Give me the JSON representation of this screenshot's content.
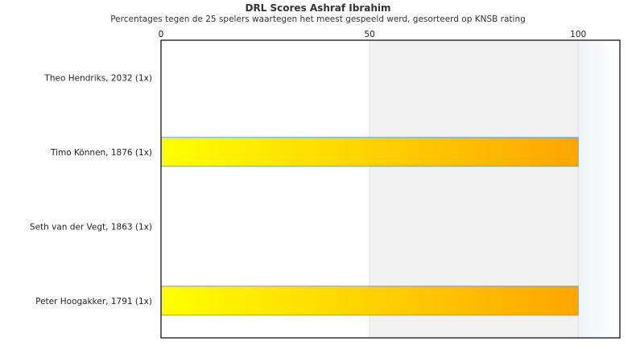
{
  "chart_data": {
    "type": "bar",
    "orientation": "horizontal",
    "title": "DRL Scores Ashraf Ibrahim",
    "subtitle": "Percentages tegen de 25 spelers waartegen het meest gespeeld werd, gesorteerd op KNSB rating",
    "categories": [
      "Theo Hendriks, 2032 (1x)",
      "Timo Können, 1876 (1x)",
      "Seth van der Vegt, 1863 (1x)",
      "Peter Hoogakker, 1791 (1x)"
    ],
    "values": [
      0,
      100,
      0,
      100
    ],
    "xlim": [
      0,
      110
    ],
    "xticks": [
      "0",
      "50",
      "100"
    ],
    "axis_position": "top",
    "bands": [
      {
        "from": 50,
        "to": 100,
        "color": "#f2f2f2"
      },
      {
        "from": 100,
        "to": 110,
        "color": "#f5f9fc"
      }
    ],
    "bar_gradient": [
      "#ffff00",
      "#ffa500"
    ],
    "bar_border": "#66a3e0",
    "legend": "none"
  }
}
